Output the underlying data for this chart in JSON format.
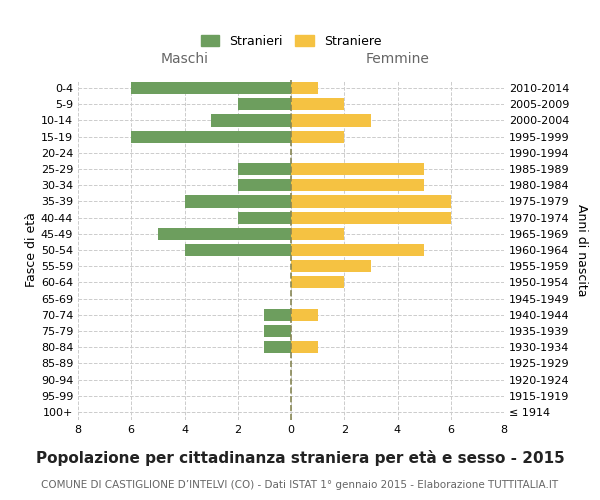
{
  "age_groups": [
    "100+",
    "95-99",
    "90-94",
    "85-89",
    "80-84",
    "75-79",
    "70-74",
    "65-69",
    "60-64",
    "55-59",
    "50-54",
    "45-49",
    "40-44",
    "35-39",
    "30-34",
    "25-29",
    "20-24",
    "15-19",
    "10-14",
    "5-9",
    "0-4"
  ],
  "birth_years": [
    "≤ 1914",
    "1915-1919",
    "1920-1924",
    "1925-1929",
    "1930-1934",
    "1935-1939",
    "1940-1944",
    "1945-1949",
    "1950-1954",
    "1955-1959",
    "1960-1964",
    "1965-1969",
    "1970-1974",
    "1975-1979",
    "1980-1984",
    "1985-1989",
    "1990-1994",
    "1995-1999",
    "2000-2004",
    "2005-2009",
    "2010-2014"
  ],
  "males": [
    0,
    0,
    0,
    0,
    1,
    1,
    1,
    0,
    0,
    0,
    4,
    5,
    2,
    4,
    2,
    2,
    0,
    6,
    3,
    2,
    6
  ],
  "females": [
    0,
    0,
    0,
    0,
    1,
    0,
    1,
    0,
    2,
    3,
    5,
    2,
    6,
    6,
    5,
    5,
    0,
    2,
    3,
    2,
    1
  ],
  "male_color": "#6d9e5e",
  "female_color": "#f5c242",
  "xlim": 8,
  "title": "Popolazione per cittadinanza straniera per età e sesso - 2015",
  "subtitle": "COMUNE DI CASTIGLIONE D’INTELVI (CO) - Dati ISTAT 1° gennaio 2015 - Elaborazione TUTTITALIA.IT",
  "ylabel_left": "Fasce di età",
  "ylabel_right": "Anni di nascita",
  "legend_male": "Stranieri",
  "legend_female": "Straniere",
  "header_left": "Maschi",
  "header_right": "Femmine",
  "bg_color": "#ffffff",
  "grid_color": "#cccccc",
  "title_fontsize": 11,
  "subtitle_fontsize": 7.5,
  "axis_label_fontsize": 9,
  "tick_fontsize": 8,
  "bar_height": 0.75
}
